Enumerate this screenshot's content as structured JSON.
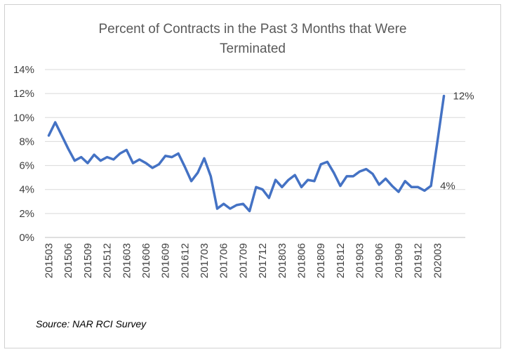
{
  "chart_data": {
    "type": "line",
    "title_line1": "Percent of Contracts in the Past 3 Months that Were",
    "title_line2": "Terminated",
    "xlabel": "",
    "ylabel": "",
    "ylim": [
      0,
      14
    ],
    "y_ticks": [
      "0%",
      "2%",
      "4%",
      "6%",
      "8%",
      "10%",
      "12%",
      "14%"
    ],
    "x_tick_labels": [
      "201503",
      "201506",
      "201509",
      "201512",
      "201603",
      "201606",
      "201609",
      "201612",
      "201703",
      "201706",
      "201709",
      "201712",
      "201803",
      "201806",
      "201809",
      "201812",
      "201903",
      "201906",
      "201909",
      "201912",
      "202003"
    ],
    "grid": true,
    "legend": "none",
    "line_color": "#4472C4",
    "x": [
      "201503",
      "201504",
      "201505",
      "201506",
      "201507",
      "201508",
      "201509",
      "201510",
      "201511",
      "201512",
      "201601",
      "201602",
      "201603",
      "201604",
      "201605",
      "201606",
      "201607",
      "201608",
      "201609",
      "201610",
      "201611",
      "201612",
      "201701",
      "201702",
      "201703",
      "201704",
      "201705",
      "201706",
      "201707",
      "201708",
      "201709",
      "201710",
      "201711",
      "201712",
      "201801",
      "201802",
      "201803",
      "201804",
      "201805",
      "201806",
      "201807",
      "201808",
      "201809",
      "201810",
      "201811",
      "201812",
      "201901",
      "201902",
      "201903",
      "201904",
      "201905",
      "201906",
      "201907",
      "201908",
      "201909",
      "201910",
      "201911",
      "201912",
      "202001",
      "202002",
      "202003",
      "202004"
    ],
    "values": [
      8.5,
      9.6,
      8.5,
      7.4,
      6.4,
      6.7,
      6.2,
      6.9,
      6.4,
      6.7,
      6.5,
      7.0,
      7.3,
      6.2,
      6.5,
      6.2,
      5.8,
      6.1,
      6.8,
      6.7,
      7.0,
      5.9,
      4.7,
      5.4,
      6.6,
      5.1,
      2.4,
      2.8,
      2.4,
      2.7,
      2.8,
      2.2,
      4.2,
      4.0,
      3.3,
      4.8,
      4.2,
      4.8,
      5.2,
      4.2,
      4.8,
      4.7,
      6.1,
      6.3,
      5.4,
      4.3,
      5.1,
      5.1,
      5.5,
      5.7,
      5.3,
      4.4,
      4.9,
      4.3,
      3.8,
      4.7,
      4.2,
      4.2,
      3.9,
      4.3,
      8.0,
      11.8
    ],
    "data_labels": [
      {
        "index": 59,
        "text": "4%"
      },
      {
        "index": 61,
        "text": "12%"
      }
    ]
  },
  "source": "Source: NAR RCI Survey"
}
